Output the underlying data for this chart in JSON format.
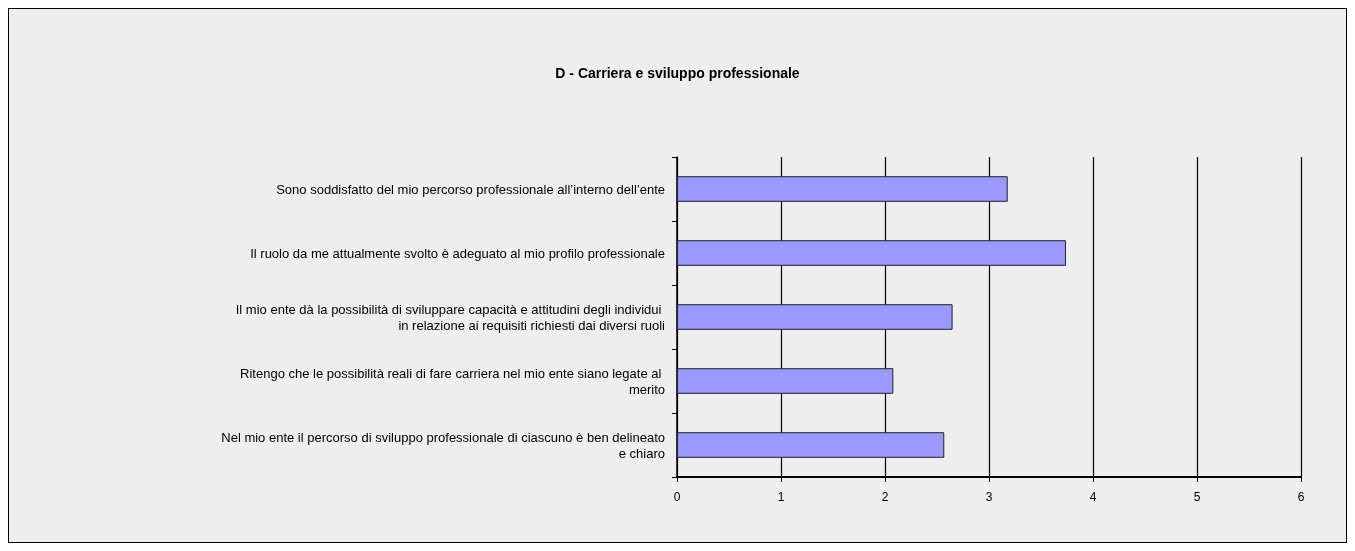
{
  "chart_data": {
    "type": "bar",
    "orientation": "horizontal",
    "title": "D - Carriera e sviluppo professionale",
    "categories": [
      "Sono soddisfatto del mio percorso professionale all’interno dell’ente",
      "Il ruolo da me attualmente svolto è adeguato al mio profilo professionale",
      "Il mio ente dà la possibilità di sviluppare capacità e attitudini degli individui in relazione ai requisiti richiesti dai diversi ruoli",
      "Ritengo che le possibilità reali di fare carriera nel mio ente siano legate al merito",
      "Nel mio ente il percorso di sviluppo professionale di ciascuno è ben delineato e chiaro"
    ],
    "values": [
      3.18,
      3.74,
      2.65,
      2.08,
      2.57
    ],
    "color": "#9999ff",
    "xlim": [
      0,
      6
    ],
    "xticks": [
      0,
      1,
      2,
      3,
      4,
      5,
      6
    ],
    "grid": "x"
  }
}
